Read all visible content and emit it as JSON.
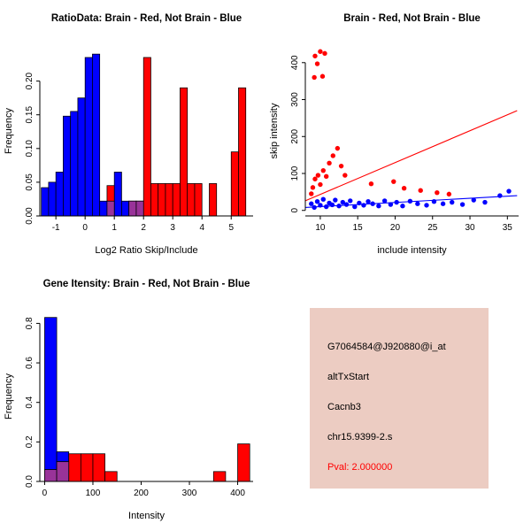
{
  "window": {
    "background": "#ffffff"
  },
  "colors": {
    "red": "#ff0000",
    "blue": "#0000ff",
    "purple": "#993399",
    "axis": "#000000",
    "info_panel_bg": "#ecccc2",
    "pval_text": "#ff0000"
  },
  "chart_data": [
    {
      "id": "ratio_hist",
      "type": "bar",
      "title": "RatioData: Brain - Red, Not Brain - Blue",
      "xlabel": "Log2 Ratio Skip/Include",
      "ylabel": "Frequency",
      "xlim": [
        -1.55,
        5.75
      ],
      "ylim": [
        0,
        0.252
      ],
      "xticks": [
        -1,
        0,
        1,
        2,
        3,
        4,
        5
      ],
      "xtick_labels": [
        "-1",
        "0",
        "1",
        "2",
        "3",
        "4",
        "5"
      ],
      "yticks": [
        0,
        0.05,
        0.1,
        0.15,
        0.2
      ],
      "ytick_labels": [
        "0.00",
        "0.05",
        "0.10",
        "0.15",
        "0.20"
      ],
      "legend_note": "Brain = red, Not Brain = blue, overlap shown purple",
      "bars": [
        {
          "x0": -1.5,
          "x1": -1.25,
          "h": 0.042,
          "color": "blue"
        },
        {
          "x0": -1.25,
          "x1": -1.0,
          "h": 0.05,
          "color": "blue"
        },
        {
          "x0": -1.0,
          "x1": -0.75,
          "h": 0.065,
          "color": "blue"
        },
        {
          "x0": -0.75,
          "x1": -0.5,
          "h": 0.148,
          "color": "blue"
        },
        {
          "x0": -0.5,
          "x1": -0.25,
          "h": 0.155,
          "color": "blue"
        },
        {
          "x0": -0.25,
          "x1": 0.0,
          "h": 0.175,
          "color": "blue"
        },
        {
          "x0": 0.0,
          "x1": 0.25,
          "h": 0.235,
          "color": "blue"
        },
        {
          "x0": 0.25,
          "x1": 0.5,
          "h": 0.24,
          "color": "blue"
        },
        {
          "x0": 0.5,
          "x1": 0.75,
          "h": 0.022,
          "color": "blue"
        },
        {
          "x0": 0.75,
          "x1": 1.0,
          "h": 0.022,
          "color": "blue"
        },
        {
          "x0": 1.0,
          "x1": 1.25,
          "h": 0.065,
          "color": "blue"
        },
        {
          "x0": 1.25,
          "x1": 1.5,
          "h": 0.022,
          "color": "blue"
        },
        {
          "x0": 1.5,
          "x1": 1.75,
          "h": 0.022,
          "color": "blue"
        },
        {
          "x0": 1.75,
          "x1": 2.0,
          "h": 0.022,
          "color": "blue"
        },
        {
          "x0": 0.75,
          "x1": 1.0,
          "h": 0.045,
          "color": "red"
        },
        {
          "x0": 2.0,
          "x1": 2.25,
          "h": 0.235,
          "color": "red"
        },
        {
          "x0": 2.25,
          "x1": 2.5,
          "h": 0.048,
          "color": "red"
        },
        {
          "x0": 2.5,
          "x1": 2.75,
          "h": 0.048,
          "color": "red"
        },
        {
          "x0": 2.75,
          "x1": 3.0,
          "h": 0.048,
          "color": "red"
        },
        {
          "x0": 3.0,
          "x1": 3.25,
          "h": 0.048,
          "color": "red"
        },
        {
          "x0": 3.25,
          "x1": 3.5,
          "h": 0.19,
          "color": "red"
        },
        {
          "x0": 3.5,
          "x1": 3.75,
          "h": 0.048,
          "color": "red"
        },
        {
          "x0": 3.75,
          "x1": 4.0,
          "h": 0.048,
          "color": "red"
        },
        {
          "x0": 4.25,
          "x1": 4.5,
          "h": 0.048,
          "color": "red"
        },
        {
          "x0": 5.0,
          "x1": 5.25,
          "h": 0.095,
          "color": "red"
        },
        {
          "x0": 5.25,
          "x1": 5.5,
          "h": 0.19,
          "color": "red"
        },
        {
          "x0": 0.75,
          "x1": 1.0,
          "h": 0.022,
          "color": "purple"
        },
        {
          "x0": 1.5,
          "x1": 1.75,
          "h": 0.022,
          "color": "purple"
        },
        {
          "x0": 1.75,
          "x1": 2.0,
          "h": 0.022,
          "color": "purple"
        }
      ]
    },
    {
      "id": "scatter",
      "type": "scatter",
      "title": "Brain - Red, Not Brain - Blue",
      "xlabel": "include intensity",
      "ylabel": "skip intensity",
      "xlim": [
        8,
        36.5
      ],
      "ylim": [
        -15,
        445
      ],
      "xticks": [
        10,
        15,
        20,
        25,
        30,
        35
      ],
      "xtick_labels": [
        "10",
        "15",
        "20",
        "25",
        "30",
        "35"
      ],
      "yticks": [
        0,
        100,
        200,
        300,
        400
      ],
      "ytick_labels": [
        "0",
        "100",
        "200",
        "300",
        "400"
      ],
      "series": [
        {
          "name": "brain",
          "color": "red",
          "points": [
            [
              9.3,
              418
            ],
            [
              10.0,
              430
            ],
            [
              10.6,
              425
            ],
            [
              9.6,
              397
            ],
            [
              9.2,
              360
            ],
            [
              10.3,
              363
            ],
            [
              8.8,
              45
            ],
            [
              9.0,
              62
            ],
            [
              9.3,
              85
            ],
            [
              9.7,
              95
            ],
            [
              10.0,
              70
            ],
            [
              10.4,
              108
            ],
            [
              10.8,
              92
            ],
            [
              11.2,
              128
            ],
            [
              11.7,
              148
            ],
            [
              12.3,
              168
            ],
            [
              12.8,
              120
            ],
            [
              13.3,
              95
            ],
            [
              16.8,
              72
            ],
            [
              19.8,
              78
            ],
            [
              21.2,
              60
            ],
            [
              23.4,
              54
            ],
            [
              25.6,
              48
            ],
            [
              27.2,
              44
            ]
          ]
        },
        {
          "name": "not-brain",
          "color": "blue",
          "points": [
            [
              8.8,
              18
            ],
            [
              9.2,
              8
            ],
            [
              9.6,
              24
            ],
            [
              10.0,
              14
            ],
            [
              10.4,
              30
            ],
            [
              10.8,
              10
            ],
            [
              11.2,
              20
            ],
            [
              11.6,
              15
            ],
            [
              12.0,
              28
            ],
            [
              12.5,
              12
            ],
            [
              13.0,
              22
            ],
            [
              13.5,
              16
            ],
            [
              14.0,
              26
            ],
            [
              14.6,
              10
            ],
            [
              15.2,
              20
            ],
            [
              15.8,
              14
            ],
            [
              16.4,
              24
            ],
            [
              17.0,
              18
            ],
            [
              17.8,
              12
            ],
            [
              18.6,
              26
            ],
            [
              19.4,
              16
            ],
            [
              20.2,
              22
            ],
            [
              21.0,
              12
            ],
            [
              22.0,
              25
            ],
            [
              23.0,
              18
            ],
            [
              24.2,
              14
            ],
            [
              25.2,
              24
            ],
            [
              26.4,
              18
            ],
            [
              27.6,
              22
            ],
            [
              29.0,
              16
            ],
            [
              30.5,
              28
            ],
            [
              32.0,
              22
            ],
            [
              34.0,
              40
            ],
            [
              35.2,
              52
            ]
          ]
        }
      ],
      "lines": [
        {
          "color": "red",
          "x1": 8,
          "y1": 26,
          "x2": 36.3,
          "y2": 270
        },
        {
          "color": "blue",
          "x1": 8,
          "y1": 8,
          "x2": 36.3,
          "y2": 40
        }
      ]
    },
    {
      "id": "gene_hist",
      "type": "bar",
      "title": "Gene Itensity: Brain - Red, Not Brain - Blue",
      "xlabel": "Intensity",
      "ylabel": "Frequency",
      "xlim": [
        -10,
        432
      ],
      "ylim": [
        0,
        0.86
      ],
      "xticks": [
        0,
        100,
        200,
        300,
        400
      ],
      "xtick_labels": [
        "0",
        "100",
        "200",
        "300",
        "400"
      ],
      "yticks": [
        0,
        0.2,
        0.4,
        0.6,
        0.8
      ],
      "ytick_labels": [
        "0.0",
        "0.2",
        "0.4",
        "0.6",
        "0.8"
      ],
      "legend_note": "Brain = red, Not Brain = blue, overlap shown purple",
      "bars": [
        {
          "x0": 0,
          "x1": 25,
          "h": 0.83,
          "color": "blue"
        },
        {
          "x0": 25,
          "x1": 50,
          "h": 0.15,
          "color": "blue"
        },
        {
          "x0": 50,
          "x1": 75,
          "h": 0.02,
          "color": "blue"
        },
        {
          "x0": 0,
          "x1": 25,
          "h": 0.06,
          "color": "red"
        },
        {
          "x0": 25,
          "x1": 50,
          "h": 0.1,
          "color": "red"
        },
        {
          "x0": 50,
          "x1": 75,
          "h": 0.14,
          "color": "red"
        },
        {
          "x0": 75,
          "x1": 100,
          "h": 0.14,
          "color": "red"
        },
        {
          "x0": 100,
          "x1": 125,
          "h": 0.14,
          "color": "red"
        },
        {
          "x0": 125,
          "x1": 150,
          "h": 0.05,
          "color": "red"
        },
        {
          "x0": 350,
          "x1": 375,
          "h": 0.05,
          "color": "red"
        },
        {
          "x0": 400,
          "x1": 425,
          "h": 0.19,
          "color": "red"
        },
        {
          "x0": 0,
          "x1": 25,
          "h": 0.06,
          "color": "purple"
        },
        {
          "x0": 25,
          "x1": 50,
          "h": 0.1,
          "color": "purple"
        }
      ]
    }
  ],
  "info_panel": {
    "lines": [
      {
        "text": "G7064584@J920880@i_at"
      },
      {
        "text": "altTxStart"
      },
      {
        "text": "Cacnb3"
      },
      {
        "text": "chr15.9399-2.s"
      },
      {
        "text": "Pval: 2.000000",
        "highlight": "red"
      }
    ]
  }
}
